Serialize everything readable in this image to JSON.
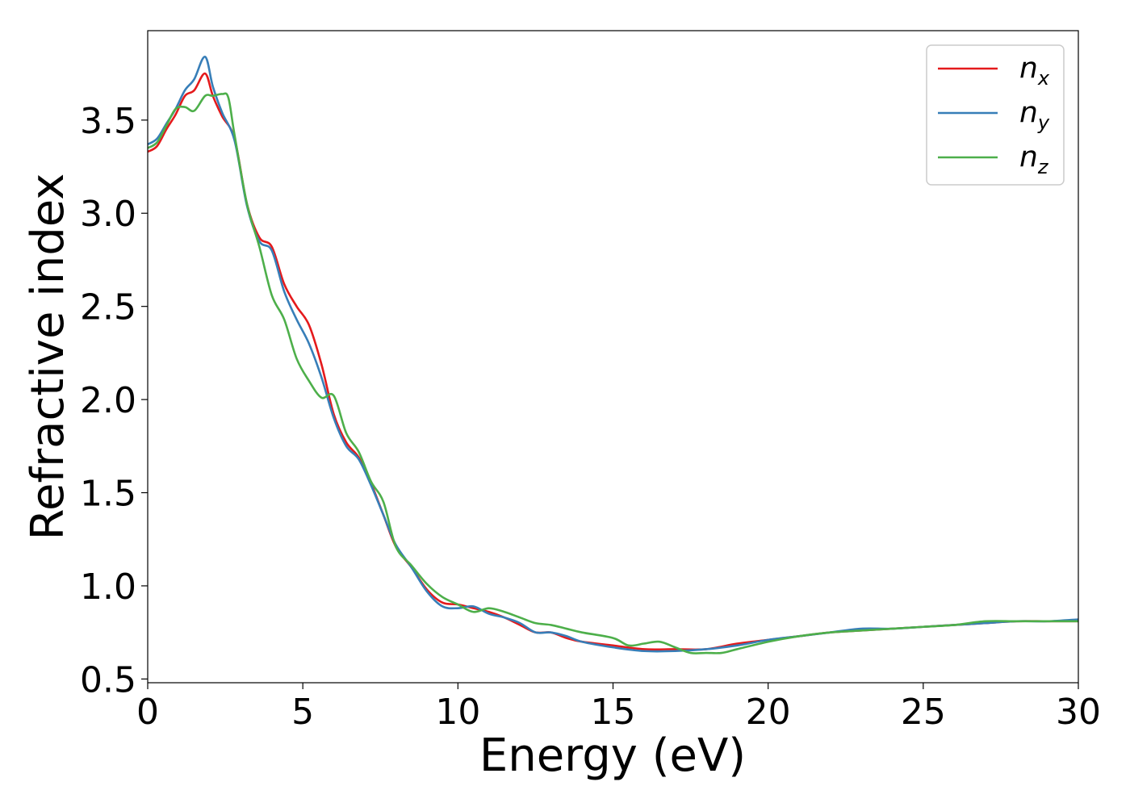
{
  "chart_data": {
    "type": "line",
    "xlabel": "Energy (eV)",
    "ylabel": "Refractive index",
    "xlim": [
      0,
      30
    ],
    "ylim": [
      0.48,
      3.98
    ],
    "xticks": [
      0,
      5,
      10,
      15,
      20,
      25,
      30
    ],
    "xtick_labels": [
      "0",
      "5",
      "10",
      "15",
      "20",
      "25",
      "30"
    ],
    "yticks": [
      0.5,
      1.0,
      1.5,
      2.0,
      2.5,
      3.0,
      3.5
    ],
    "ytick_labels": [
      "0.5",
      "1.0",
      "1.5",
      "2.0",
      "2.5",
      "3.0",
      "3.5"
    ],
    "grid": false,
    "legend_position": "top-right",
    "series": [
      {
        "name": "n_x",
        "label_main": "n",
        "label_sub": "x",
        "color": "#e41a1c",
        "x": [
          0,
          0.3,
          0.6,
          0.9,
          1.2,
          1.5,
          1.85,
          2.1,
          2.4,
          2.8,
          3.2,
          3.6,
          4.0,
          4.4,
          4.8,
          5.2,
          5.6,
          6.0,
          6.4,
          6.8,
          7.2,
          7.6,
          8.0,
          8.5,
          9.0,
          9.5,
          10.0,
          10.5,
          11.0,
          11.5,
          12.0,
          12.5,
          13.0,
          13.5,
          14.0,
          15.0,
          16.0,
          17.0,
          18.0,
          19.0,
          20.0,
          21.0,
          22.0,
          23.0,
          24.0,
          25.0,
          26.0,
          27.0,
          28.0,
          29.0,
          30.0
        ],
        "y": [
          3.33,
          3.36,
          3.45,
          3.53,
          3.63,
          3.66,
          3.75,
          3.63,
          3.52,
          3.4,
          3.05,
          2.87,
          2.82,
          2.62,
          2.5,
          2.4,
          2.19,
          1.92,
          1.77,
          1.69,
          1.55,
          1.38,
          1.21,
          1.1,
          0.98,
          0.91,
          0.9,
          0.88,
          0.86,
          0.83,
          0.79,
          0.75,
          0.75,
          0.72,
          0.7,
          0.68,
          0.66,
          0.66,
          0.66,
          0.69,
          0.71,
          0.73,
          0.75,
          0.76,
          0.77,
          0.78,
          0.79,
          0.8,
          0.81,
          0.81,
          0.81
        ]
      },
      {
        "name": "n_y",
        "label_main": "n",
        "label_sub": "y",
        "color": "#377eb8",
        "x": [
          0,
          0.3,
          0.6,
          0.9,
          1.2,
          1.5,
          1.85,
          2.1,
          2.4,
          2.8,
          3.2,
          3.6,
          4.0,
          4.4,
          4.8,
          5.2,
          5.6,
          6.0,
          6.4,
          6.8,
          7.2,
          7.6,
          8.0,
          8.5,
          9.0,
          9.5,
          10.0,
          10.5,
          11.0,
          11.5,
          12.0,
          12.5,
          13.0,
          13.5,
          14.0,
          15.0,
          16.0,
          17.0,
          18.0,
          19.0,
          20.0,
          21.0,
          22.0,
          23.0,
          24.0,
          25.0,
          26.0,
          27.0,
          28.0,
          29.0,
          30.0
        ],
        "y": [
          3.37,
          3.4,
          3.48,
          3.56,
          3.66,
          3.72,
          3.84,
          3.68,
          3.54,
          3.39,
          3.04,
          2.85,
          2.8,
          2.58,
          2.43,
          2.3,
          2.12,
          1.9,
          1.75,
          1.68,
          1.54,
          1.38,
          1.22,
          1.1,
          0.97,
          0.89,
          0.88,
          0.89,
          0.85,
          0.83,
          0.8,
          0.75,
          0.75,
          0.73,
          0.7,
          0.67,
          0.65,
          0.65,
          0.66,
          0.68,
          0.71,
          0.73,
          0.75,
          0.77,
          0.77,
          0.78,
          0.79,
          0.8,
          0.81,
          0.81,
          0.82
        ]
      },
      {
        "name": "n_z",
        "label_main": "n",
        "label_sub": "z",
        "color": "#4daf4a",
        "x": [
          0,
          0.3,
          0.6,
          0.9,
          1.2,
          1.5,
          1.85,
          2.1,
          2.4,
          2.6,
          2.8,
          3.2,
          3.6,
          4.0,
          4.4,
          4.8,
          5.2,
          5.6,
          6.0,
          6.4,
          6.8,
          7.2,
          7.6,
          8.0,
          8.5,
          9.0,
          9.5,
          10.0,
          10.5,
          11.0,
          11.5,
          12.0,
          12.5,
          13.0,
          13.5,
          14.0,
          15.0,
          15.5,
          16.0,
          16.5,
          17.0,
          17.5,
          18.0,
          18.5,
          19.0,
          20.0,
          21.0,
          22.0,
          23.0,
          24.0,
          25.0,
          26.0,
          27.0,
          28.0,
          29.0,
          30.0
        ],
        "y": [
          3.35,
          3.38,
          3.47,
          3.56,
          3.57,
          3.55,
          3.63,
          3.63,
          3.64,
          3.62,
          3.42,
          3.05,
          2.82,
          2.56,
          2.43,
          2.22,
          2.1,
          2.01,
          2.02,
          1.82,
          1.72,
          1.56,
          1.45,
          1.21,
          1.11,
          1.01,
          0.94,
          0.9,
          0.86,
          0.88,
          0.86,
          0.83,
          0.8,
          0.79,
          0.77,
          0.75,
          0.72,
          0.68,
          0.69,
          0.7,
          0.67,
          0.64,
          0.64,
          0.64,
          0.66,
          0.7,
          0.73,
          0.75,
          0.76,
          0.77,
          0.78,
          0.79,
          0.81,
          0.81,
          0.81,
          0.81
        ]
      }
    ]
  }
}
